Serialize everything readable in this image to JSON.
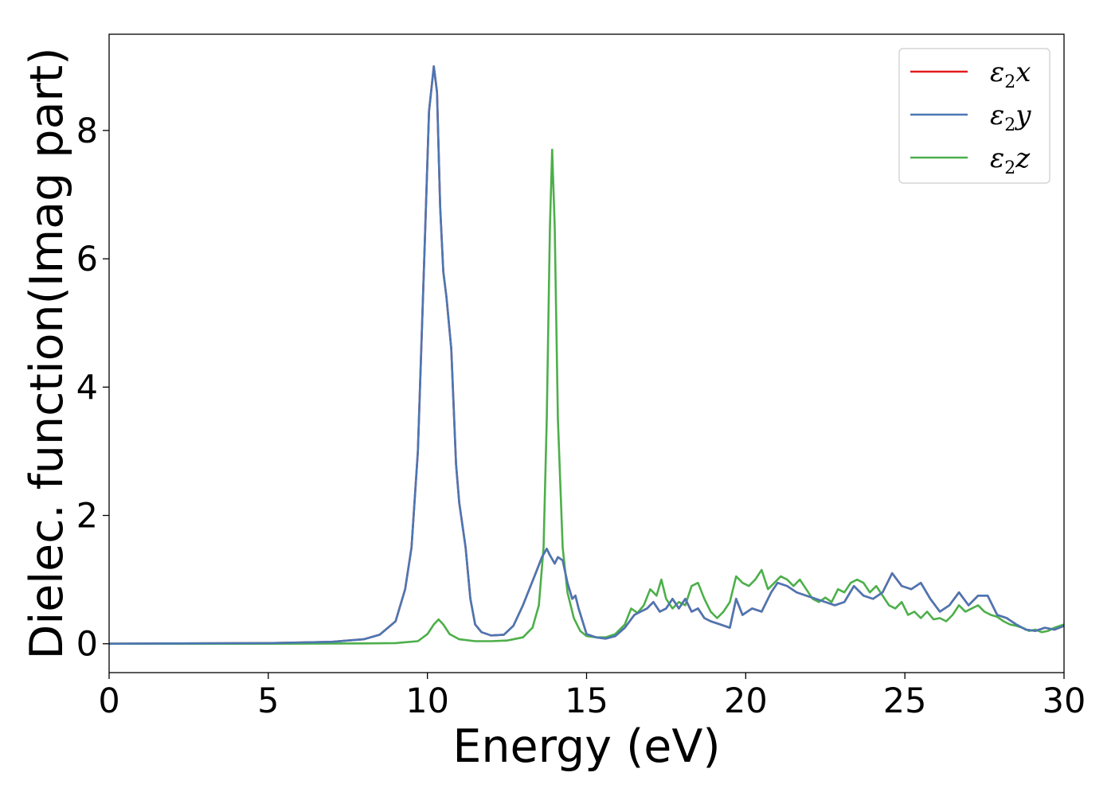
{
  "chart_data": {
    "type": "line",
    "xlabel": "Energy (eV)",
    "ylabel": "Dielec. function(Imag part)",
    "xlim": [
      0,
      30
    ],
    "ylim": [
      -0.45,
      9.5
    ],
    "xticks": [
      0,
      5,
      10,
      15,
      20,
      25,
      30
    ],
    "yticks": [
      0,
      2,
      4,
      6,
      8
    ],
    "grid": false,
    "legend_position": "top-right",
    "series": [
      {
        "name": "ε2x",
        "legend_base": "ε",
        "legend_sub": "2",
        "legend_suffix": "x",
        "color": "#e41a1c",
        "x": [
          0,
          5,
          7,
          8,
          8.5,
          9,
          9.3,
          9.5,
          9.7,
          9.9,
          10.05,
          10.2,
          10.3,
          10.4,
          10.5,
          10.6,
          10.75,
          10.9,
          11.0,
          11.2,
          11.35,
          11.5,
          11.7,
          12.0,
          12.4,
          12.7,
          13.0,
          13.2,
          13.4,
          13.6,
          13.75,
          13.85,
          14.0,
          14.1,
          14.25,
          14.4,
          14.55,
          14.65,
          14.75,
          15.0,
          15.3,
          15.6,
          15.9,
          16.2,
          16.5,
          16.7,
          16.9,
          17.1,
          17.3,
          17.5,
          17.7,
          17.9,
          18.1,
          18.3,
          18.5,
          18.7,
          18.9,
          19.2,
          19.5,
          19.7,
          19.9,
          20.2,
          20.5,
          20.8,
          21.0,
          21.3,
          21.6,
          21.9,
          22.2,
          22.5,
          22.8,
          23.1,
          23.4,
          23.7,
          24.0,
          24.3,
          24.6,
          24.9,
          25.2,
          25.5,
          25.8,
          26.1,
          26.4,
          26.7,
          27.0,
          27.3,
          27.6,
          27.9,
          28.2,
          28.5,
          28.8,
          29.1,
          29.4,
          29.7,
          30.0
        ],
        "values": [
          0,
          0.01,
          0.03,
          0.07,
          0.14,
          0.35,
          0.85,
          1.5,
          3.0,
          6.0,
          8.3,
          9.0,
          8.6,
          6.8,
          5.8,
          5.4,
          4.6,
          2.8,
          2.2,
          1.5,
          0.7,
          0.3,
          0.18,
          0.13,
          0.14,
          0.28,
          0.6,
          0.85,
          1.1,
          1.35,
          1.48,
          1.38,
          1.25,
          1.35,
          1.3,
          0.95,
          0.7,
          0.75,
          0.55,
          0.15,
          0.1,
          0.08,
          0.12,
          0.25,
          0.45,
          0.5,
          0.55,
          0.65,
          0.5,
          0.55,
          0.7,
          0.55,
          0.7,
          0.5,
          0.55,
          0.4,
          0.35,
          0.3,
          0.25,
          0.7,
          0.45,
          0.55,
          0.5,
          0.8,
          0.95,
          0.9,
          0.8,
          0.75,
          0.7,
          0.65,
          0.6,
          0.65,
          0.9,
          0.75,
          0.7,
          0.8,
          1.1,
          0.9,
          0.85,
          0.95,
          0.7,
          0.5,
          0.6,
          0.8,
          0.6,
          0.75,
          0.75,
          0.45,
          0.4,
          0.3,
          0.22,
          0.2,
          0.25,
          0.22,
          0.28
        ]
      },
      {
        "name": "ε2y",
        "legend_base": "ε",
        "legend_sub": "2",
        "legend_suffix": "y",
        "color": "#4a77b4",
        "x": [
          0,
          5,
          7,
          8,
          8.5,
          9,
          9.3,
          9.5,
          9.7,
          9.9,
          10.05,
          10.2,
          10.3,
          10.4,
          10.5,
          10.6,
          10.75,
          10.9,
          11.0,
          11.2,
          11.35,
          11.5,
          11.7,
          12.0,
          12.4,
          12.7,
          13.0,
          13.2,
          13.4,
          13.6,
          13.75,
          13.85,
          14.0,
          14.1,
          14.25,
          14.4,
          14.55,
          14.65,
          14.75,
          15.0,
          15.3,
          15.6,
          15.9,
          16.2,
          16.5,
          16.7,
          16.9,
          17.1,
          17.3,
          17.5,
          17.7,
          17.9,
          18.1,
          18.3,
          18.5,
          18.7,
          18.9,
          19.2,
          19.5,
          19.7,
          19.9,
          20.2,
          20.5,
          20.8,
          21.0,
          21.3,
          21.6,
          21.9,
          22.2,
          22.5,
          22.8,
          23.1,
          23.4,
          23.7,
          24.0,
          24.3,
          24.6,
          24.9,
          25.2,
          25.5,
          25.8,
          26.1,
          26.4,
          26.7,
          27.0,
          27.3,
          27.6,
          27.9,
          28.2,
          28.5,
          28.8,
          29.1,
          29.4,
          29.7,
          30.0
        ],
        "values": [
          0,
          0.01,
          0.03,
          0.07,
          0.14,
          0.35,
          0.85,
          1.5,
          3.0,
          6.0,
          8.3,
          9.0,
          8.6,
          6.8,
          5.8,
          5.4,
          4.6,
          2.8,
          2.2,
          1.5,
          0.7,
          0.3,
          0.18,
          0.13,
          0.14,
          0.28,
          0.6,
          0.85,
          1.1,
          1.35,
          1.48,
          1.38,
          1.25,
          1.35,
          1.3,
          0.95,
          0.7,
          0.75,
          0.55,
          0.15,
          0.1,
          0.08,
          0.12,
          0.25,
          0.45,
          0.5,
          0.55,
          0.65,
          0.5,
          0.55,
          0.7,
          0.55,
          0.7,
          0.5,
          0.55,
          0.4,
          0.35,
          0.3,
          0.25,
          0.7,
          0.45,
          0.55,
          0.5,
          0.8,
          0.95,
          0.9,
          0.8,
          0.75,
          0.7,
          0.65,
          0.6,
          0.65,
          0.9,
          0.75,
          0.7,
          0.8,
          1.1,
          0.9,
          0.85,
          0.95,
          0.7,
          0.5,
          0.6,
          0.8,
          0.6,
          0.75,
          0.75,
          0.45,
          0.4,
          0.3,
          0.22,
          0.2,
          0.25,
          0.22,
          0.28
        ]
      },
      {
        "name": "ε2z",
        "legend_base": "ε",
        "legend_sub": "2",
        "legend_suffix": "z",
        "color": "#4daf4a",
        "x": [
          0,
          5,
          8,
          9,
          9.7,
          10.0,
          10.2,
          10.35,
          10.5,
          10.7,
          11.0,
          11.5,
          12.0,
          12.5,
          13.0,
          13.3,
          13.5,
          13.65,
          13.75,
          13.85,
          13.92,
          14.0,
          14.1,
          14.25,
          14.4,
          14.6,
          14.8,
          15.0,
          15.3,
          15.6,
          15.9,
          16.2,
          16.4,
          16.6,
          16.8,
          17.0,
          17.2,
          17.35,
          17.5,
          17.7,
          17.9,
          18.1,
          18.3,
          18.5,
          18.7,
          18.9,
          19.1,
          19.3,
          19.5,
          19.7,
          19.9,
          20.1,
          20.3,
          20.5,
          20.7,
          20.9,
          21.1,
          21.3,
          21.5,
          21.7,
          21.9,
          22.1,
          22.3,
          22.5,
          22.7,
          22.9,
          23.1,
          23.3,
          23.5,
          23.7,
          23.9,
          24.1,
          24.3,
          24.5,
          24.7,
          24.9,
          25.1,
          25.3,
          25.5,
          25.7,
          25.9,
          26.1,
          26.3,
          26.5,
          26.7,
          26.9,
          27.1,
          27.3,
          27.5,
          27.7,
          27.9,
          28.1,
          28.3,
          28.5,
          28.7,
          28.9,
          29.1,
          29.3,
          29.5,
          29.7,
          30.0
        ],
        "values": [
          0,
          0,
          0.005,
          0.01,
          0.04,
          0.15,
          0.3,
          0.38,
          0.3,
          0.15,
          0.07,
          0.04,
          0.04,
          0.05,
          0.1,
          0.25,
          0.6,
          1.5,
          3.5,
          6.5,
          7.7,
          6.5,
          3.5,
          1.5,
          0.8,
          0.4,
          0.2,
          0.12,
          0.1,
          0.1,
          0.15,
          0.3,
          0.55,
          0.48,
          0.6,
          0.85,
          0.75,
          1.0,
          0.7,
          0.55,
          0.65,
          0.6,
          0.9,
          0.95,
          0.7,
          0.5,
          0.4,
          0.5,
          0.65,
          1.05,
          0.95,
          0.9,
          1.0,
          1.15,
          0.85,
          0.95,
          1.05,
          1.0,
          0.9,
          1.0,
          0.85,
          0.7,
          0.65,
          0.72,
          0.65,
          0.85,
          0.8,
          0.95,
          1.0,
          0.95,
          0.8,
          0.9,
          0.75,
          0.6,
          0.55,
          0.65,
          0.45,
          0.5,
          0.4,
          0.5,
          0.38,
          0.4,
          0.35,
          0.45,
          0.6,
          0.5,
          0.55,
          0.6,
          0.5,
          0.45,
          0.42,
          0.35,
          0.3,
          0.28,
          0.25,
          0.2,
          0.22,
          0.18,
          0.2,
          0.25,
          0.3
        ]
      }
    ]
  }
}
